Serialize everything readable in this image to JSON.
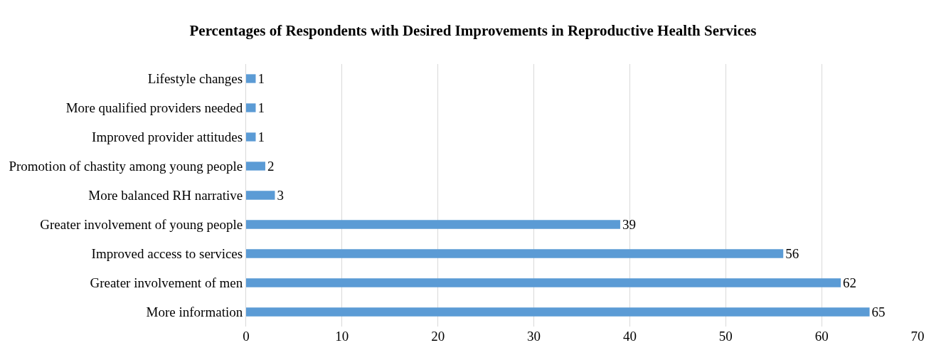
{
  "chart_data": {
    "type": "bar",
    "orientation": "horizontal",
    "title": "Percentages of Respondents with Desired Improvements in Reproductive Health Services",
    "categories": [
      "Lifestyle changes",
      "More qualified providers needed",
      "Improved provider attitudes",
      "Promotion of chastity among young people",
      "More balanced RH narrative",
      "Greater involvement of young people",
      "Improved access to services",
      "Greater involvement of men",
      "More information"
    ],
    "values": [
      1,
      1,
      1,
      2,
      3,
      39,
      56,
      62,
      65
    ],
    "color": "#5b9bd5",
    "xlim": [
      0,
      70
    ],
    "xticks": [
      0,
      10,
      20,
      30,
      40,
      50,
      60,
      70
    ],
    "grid": "x",
    "data_labels": true
  }
}
